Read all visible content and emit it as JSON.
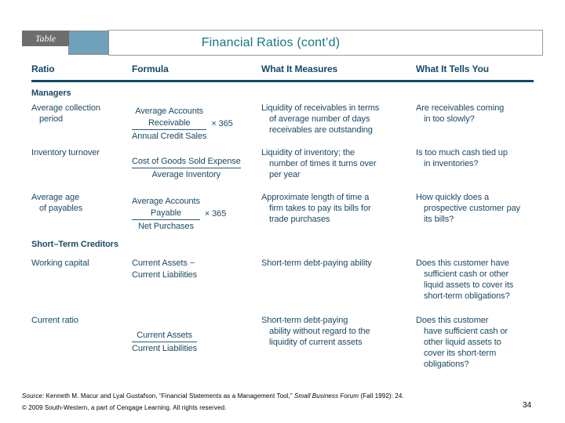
{
  "header": {
    "badge_label": "Table",
    "title": "Financial Ratios (cont’d)",
    "colors": {
      "title_text": "#16777e",
      "badge_bg": "#6e6e6e",
      "accent_box": "#70a1bb",
      "body_text": "#1c4a64",
      "header_rule": "#134a66"
    }
  },
  "table": {
    "headers": [
      "Ratio",
      "Formula",
      "What It Measures",
      "What It Tells You"
    ],
    "sections": [
      {
        "name": "Managers",
        "rows": [
          {
            "ratio": "Average collection\nperiod",
            "formula": {
              "numerator": "Average Accounts\nReceivable",
              "denominator": "Annual Credit Sales",
              "multiplier": "× 365"
            },
            "measures": "Liquidity of receivables in terms\nof average number of days\nreceivables are outstanding",
            "tells": "Are receivables coming\nin too slowly?"
          },
          {
            "ratio": "Inventory turnover",
            "formula": {
              "numerator": "Cost of Goods Sold Expense",
              "denominator": "Average Inventory"
            },
            "measures": "Liquidity of inventory; the\nnumber of times it turns over\nper year",
            "tells": "Is too much cash tied up\nin inventories?"
          },
          {
            "ratio": "Average age\nof payables",
            "formula": {
              "numerator": "Average Accounts\nPayable",
              "denominator": "Net Purchases",
              "multiplier": "× 365"
            },
            "measures": "Approximate length of time a\nfirm takes to pay its bills for\ntrade purchases",
            "tells": "How quickly does a\nprospective customer pay\nits bills?"
          }
        ]
      },
      {
        "name": "Short–Term Creditors",
        "rows": [
          {
            "ratio": "Working capital",
            "formula": {
              "plain": "Current Assets −\nCurrent Liabilities"
            },
            "measures": "Short-term debt-paying ability",
            "tells": "Does this customer have\nsufficient cash or other\nliquid assets to cover its\nshort-term obligations?"
          },
          {
            "ratio": "Current ratio",
            "formula": {
              "numerator": "Current Assets",
              "denominator": "Current Liabilities"
            },
            "measures": "Short-term debt-paying\nability without regard to the\nliquidity of current assets",
            "tells": "Does this customer\nhave sufficient cash or\nother liquid assets to\ncover its short-term\nobligations?"
          }
        ]
      }
    ]
  },
  "footer": {
    "source_prefix": "Source:",
    "source_main": " Kenneth M. Macur and Lyal Gustafson, “Financial Statements as a Management Tool,” ",
    "source_journal": "Small Business Forum",
    "source_suffix": " (Fall 1992): 24.",
    "copyright": "© 2009 South-Western, a part of Cengage Learning. All rights reserved.",
    "page_number": "34"
  }
}
